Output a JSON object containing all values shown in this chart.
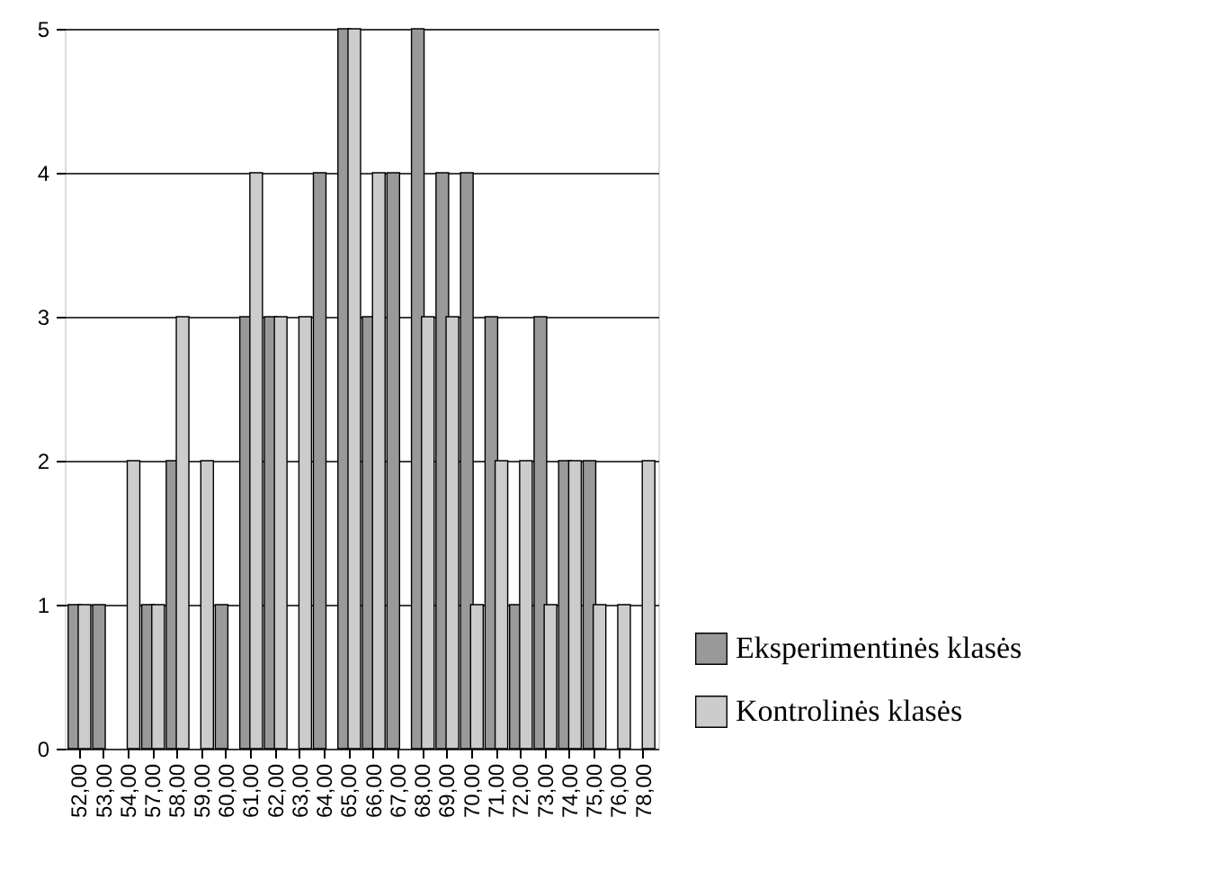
{
  "chart_data": {
    "type": "bar",
    "categories": [
      "52,00",
      "53,00",
      "54,00",
      "57,00",
      "58,00",
      "59,00",
      "60,00",
      "61,00",
      "62,00",
      "63,00",
      "64,00",
      "65,00",
      "66,00",
      "67,00",
      "68,00",
      "69,00",
      "70,00",
      "71,00",
      "72,00",
      "73,00",
      "74,00",
      "75,00",
      "76,00",
      "78,00"
    ],
    "series": [
      {
        "name": "Eksperimentinės klasės",
        "color": "#999999",
        "values": [
          1,
          1,
          0,
          1,
          2,
          0,
          1,
          3,
          3,
          0,
          4,
          5,
          3,
          4,
          5,
          4,
          4,
          3,
          1,
          3,
          2,
          2,
          0,
          0
        ]
      },
      {
        "name": "Kontrolinės klasės",
        "color": "#cccccc",
        "values": [
          1,
          0,
          2,
          1,
          3,
          2,
          0,
          4,
          3,
          3,
          0,
          5,
          4,
          0,
          3,
          3,
          1,
          2,
          2,
          1,
          2,
          1,
          1,
          2
        ]
      }
    ],
    "ylim": [
      0,
      5
    ],
    "yticks": [
      0,
      1,
      2,
      3,
      4,
      5
    ],
    "grid": "y",
    "legend": "bottom right"
  }
}
